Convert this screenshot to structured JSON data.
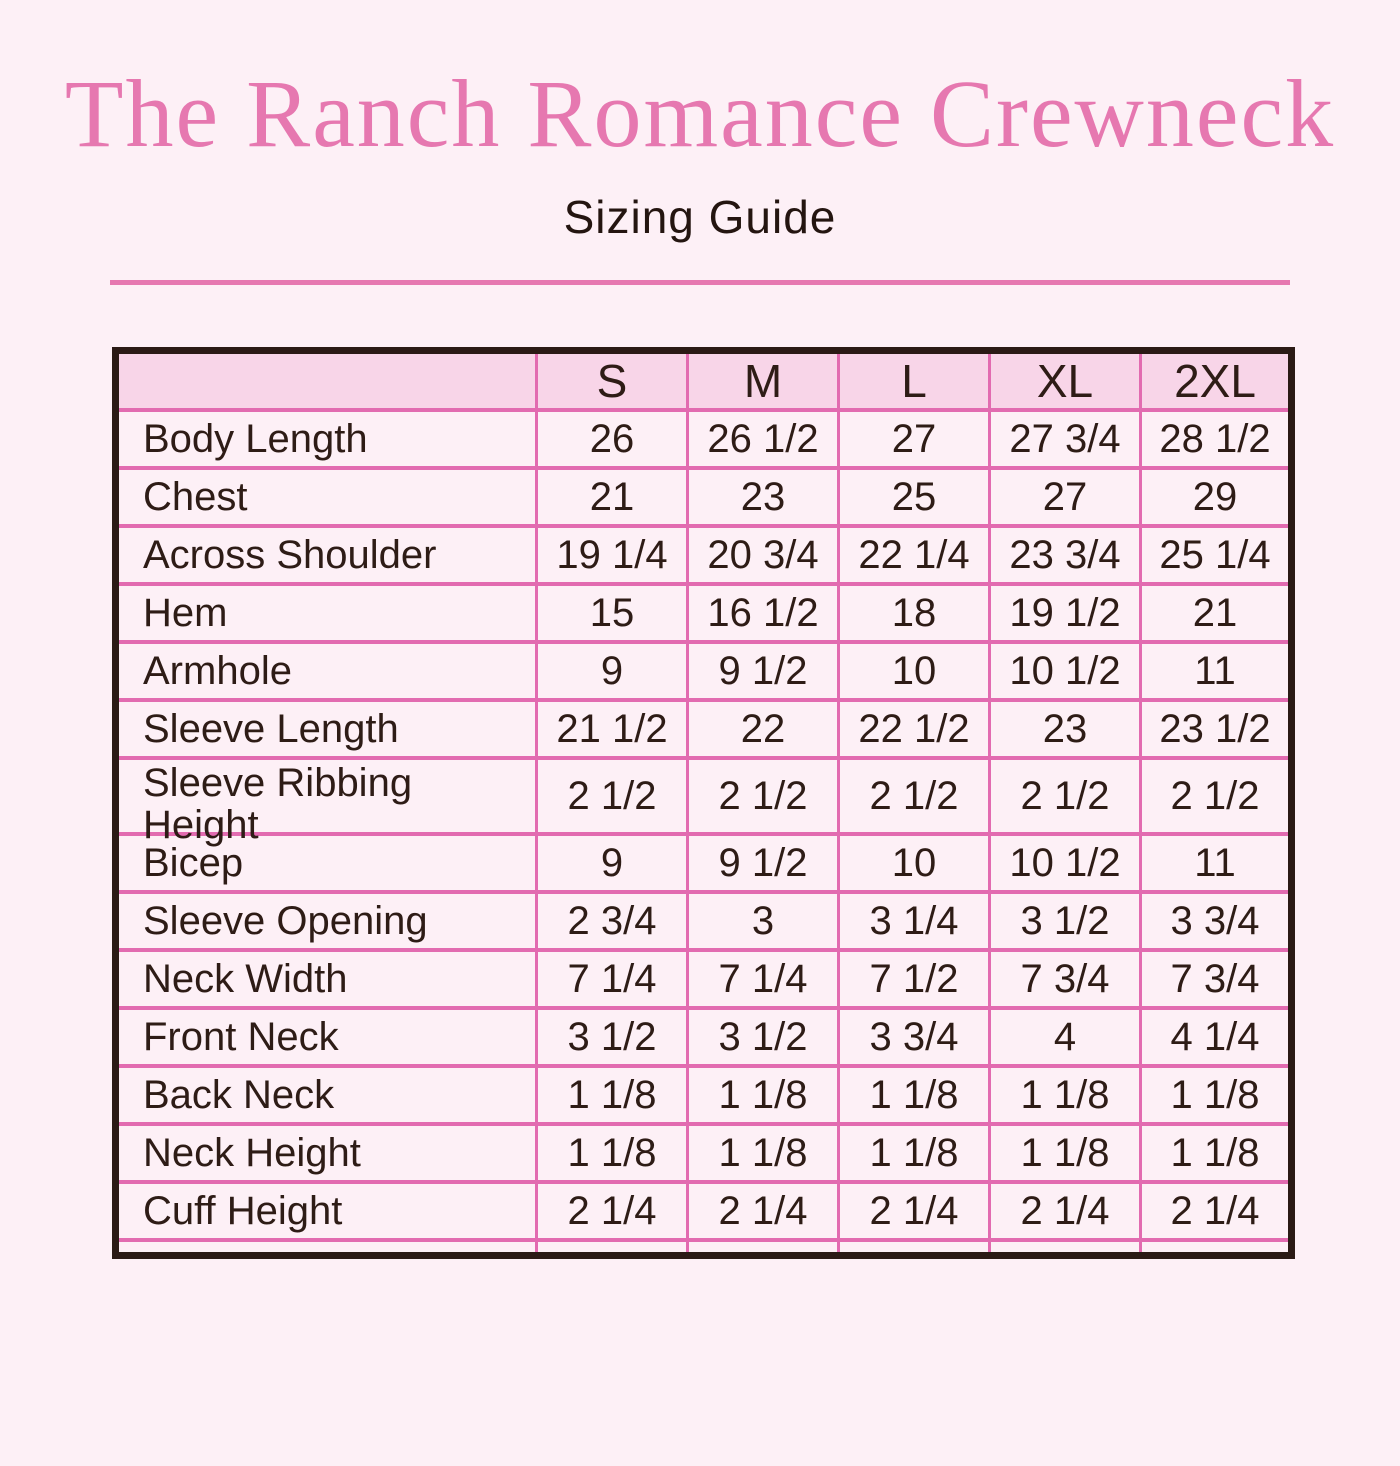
{
  "page": {
    "title": "The Ranch Romance Crewneck",
    "subtitle": "Sizing Guide"
  },
  "table": {
    "columns": [
      "",
      "S",
      "M",
      "L",
      "XL",
      "2XL"
    ],
    "rows": [
      {
        "label": "Body Length",
        "values": [
          "26",
          "26 1/2",
          "27",
          "27 3/4",
          "28 1/2"
        ]
      },
      {
        "label": "Chest",
        "values": [
          "21",
          "23",
          "25",
          "27",
          "29"
        ]
      },
      {
        "label": "Across Shoulder",
        "values": [
          "19 1/4",
          "20 3/4",
          "22 1/4",
          "23 3/4",
          "25 1/4"
        ]
      },
      {
        "label": "Hem",
        "values": [
          "15",
          "16 1/2",
          "18",
          "19 1/2",
          "21"
        ]
      },
      {
        "label": "Armhole",
        "values": [
          "9",
          "9 1/2",
          "10",
          "10 1/2",
          "11"
        ]
      },
      {
        "label": "Sleeve Length",
        "values": [
          "21 1/2",
          "22",
          "22 1/2",
          "23",
          "23 1/2"
        ]
      },
      {
        "label": "Sleeve Ribbing Height",
        "values": [
          "2 1/2",
          "2 1/2",
          "2 1/2",
          "2 1/2",
          "2 1/2"
        ]
      },
      {
        "label": "Bicep",
        "values": [
          "9",
          "9 1/2",
          "10",
          "10 1/2",
          "11"
        ]
      },
      {
        "label": "Sleeve Opening",
        "values": [
          "2 3/4",
          "3",
          "3 1/4",
          "3 1/2",
          "3 3/4"
        ]
      },
      {
        "label": "Neck Width",
        "values": [
          "7 1/4",
          "7 1/4",
          "7 1/2",
          "7 3/4",
          "7 3/4"
        ]
      },
      {
        "label": "Front Neck",
        "values": [
          "3 1/2",
          "3 1/2",
          "3 3/4",
          "4",
          "4 1/4"
        ]
      },
      {
        "label": "Back Neck",
        "values": [
          "1 1/8",
          "1 1/8",
          "1 1/8",
          "1 1/8",
          "1 1/8"
        ]
      },
      {
        "label": "Neck Height",
        "values": [
          "1 1/8",
          "1 1/8",
          "1 1/8",
          "1 1/8",
          "1 1/8"
        ]
      },
      {
        "label": "Cuff Height",
        "values": [
          "2 1/4",
          "2 1/4",
          "2 1/4",
          "2 1/4",
          "2 1/4"
        ]
      }
    ]
  },
  "colors": {
    "accent_pink": "#e678b0",
    "grid_pink": "#e26bb0",
    "header_row_bg": "#f8d5e8",
    "page_bg": "#fdf0f6",
    "outer_border_dark": "#2b1a15",
    "text_dark": "#2e1c16"
  }
}
